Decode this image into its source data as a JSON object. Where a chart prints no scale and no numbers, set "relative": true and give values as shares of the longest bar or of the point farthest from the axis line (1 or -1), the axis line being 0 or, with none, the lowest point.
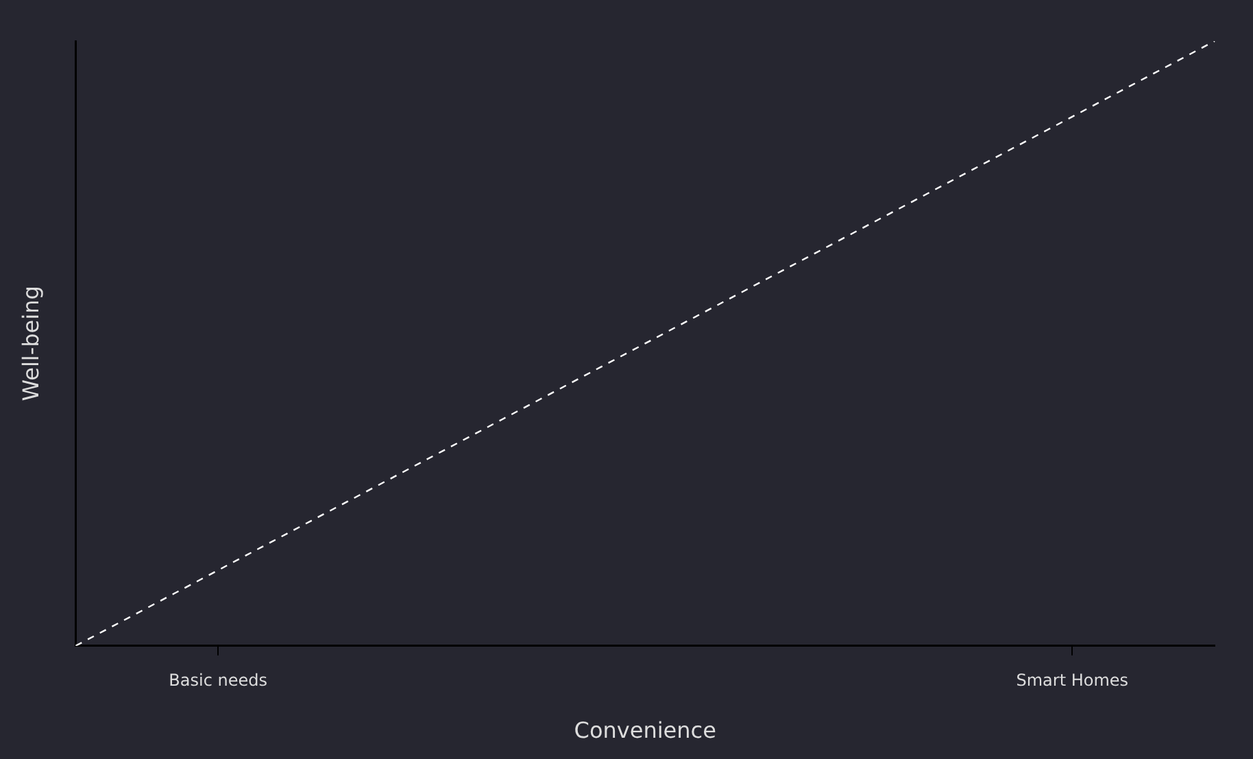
{
  "chart_data": {
    "type": "line",
    "xlabel": "Convenience",
    "ylabel": "Well-being",
    "relative": true,
    "categories": [
      null,
      "Basic needs",
      null,
      null,
      null,
      null,
      null,
      "Smart Homes",
      null
    ],
    "series": [
      {
        "color": "#ffffff",
        "values": [
          0,
          0.125,
          0.25,
          0.375,
          0.5,
          0.625,
          0.75,
          0.875,
          1
        ]
      }
    ],
    "grid": false,
    "legend": false,
    "marker": "none",
    "line_style": "dashed"
  }
}
